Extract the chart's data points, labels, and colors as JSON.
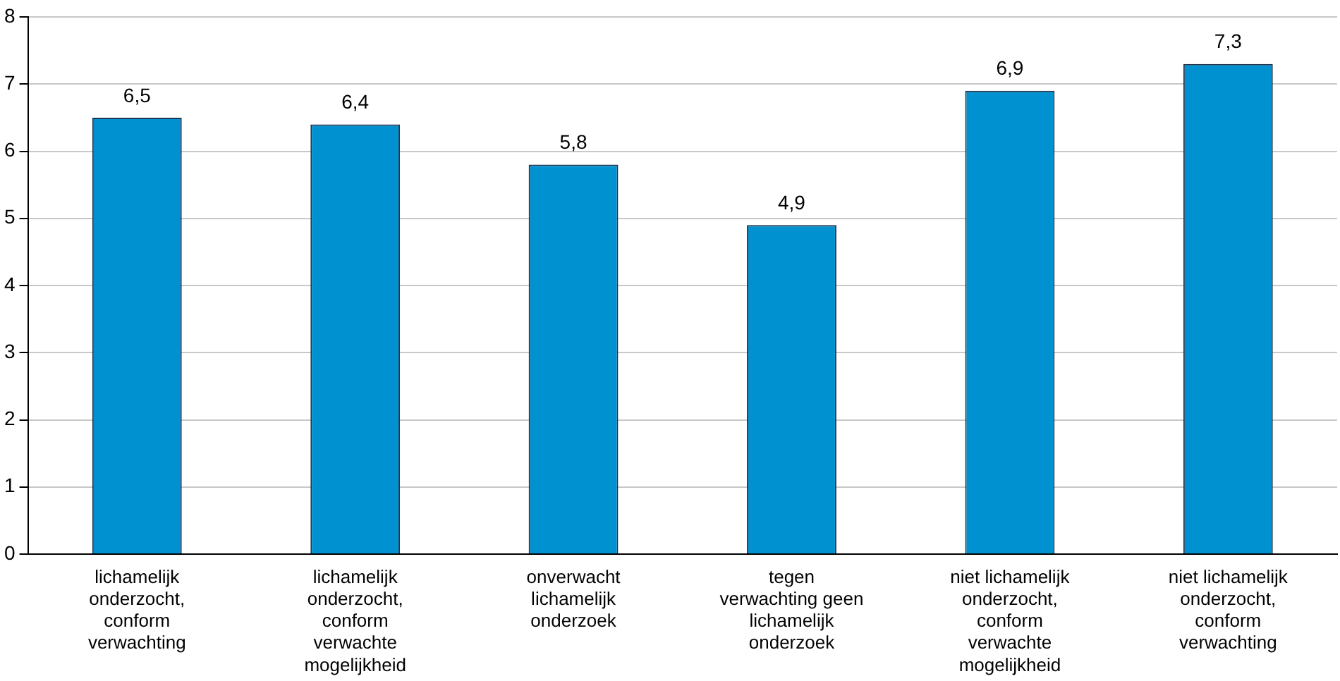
{
  "chart_data": {
    "type": "bar",
    "categories": [
      "lichamelijk\nonderzocht,\nconform\nverwachting",
      "lichamelijk\nonderzocht,\nconform\nverwachte\nmogelijkheid",
      "onverwacht\nlichamelijk\nonderzoek",
      "tegen\nverwachting geen\nlichamelijk\nonderzoek",
      "niet lichamelijk\nonderzocht,\nconform\nverwachte\nmogelijkheid",
      "niet lichamelijk\nonderzocht,\nconform\nverwachting"
    ],
    "values": [
      6.5,
      6.4,
      5.8,
      4.9,
      6.9,
      7.3
    ],
    "value_labels": [
      "6,5",
      "6,4",
      "5,8",
      "4,9",
      "6,9",
      "7,3"
    ],
    "color": "#0092d0",
    "ylim": [
      0,
      8
    ],
    "yticks": [
      0,
      1,
      2,
      3,
      4,
      5,
      6,
      7,
      8
    ],
    "grid": "y"
  }
}
